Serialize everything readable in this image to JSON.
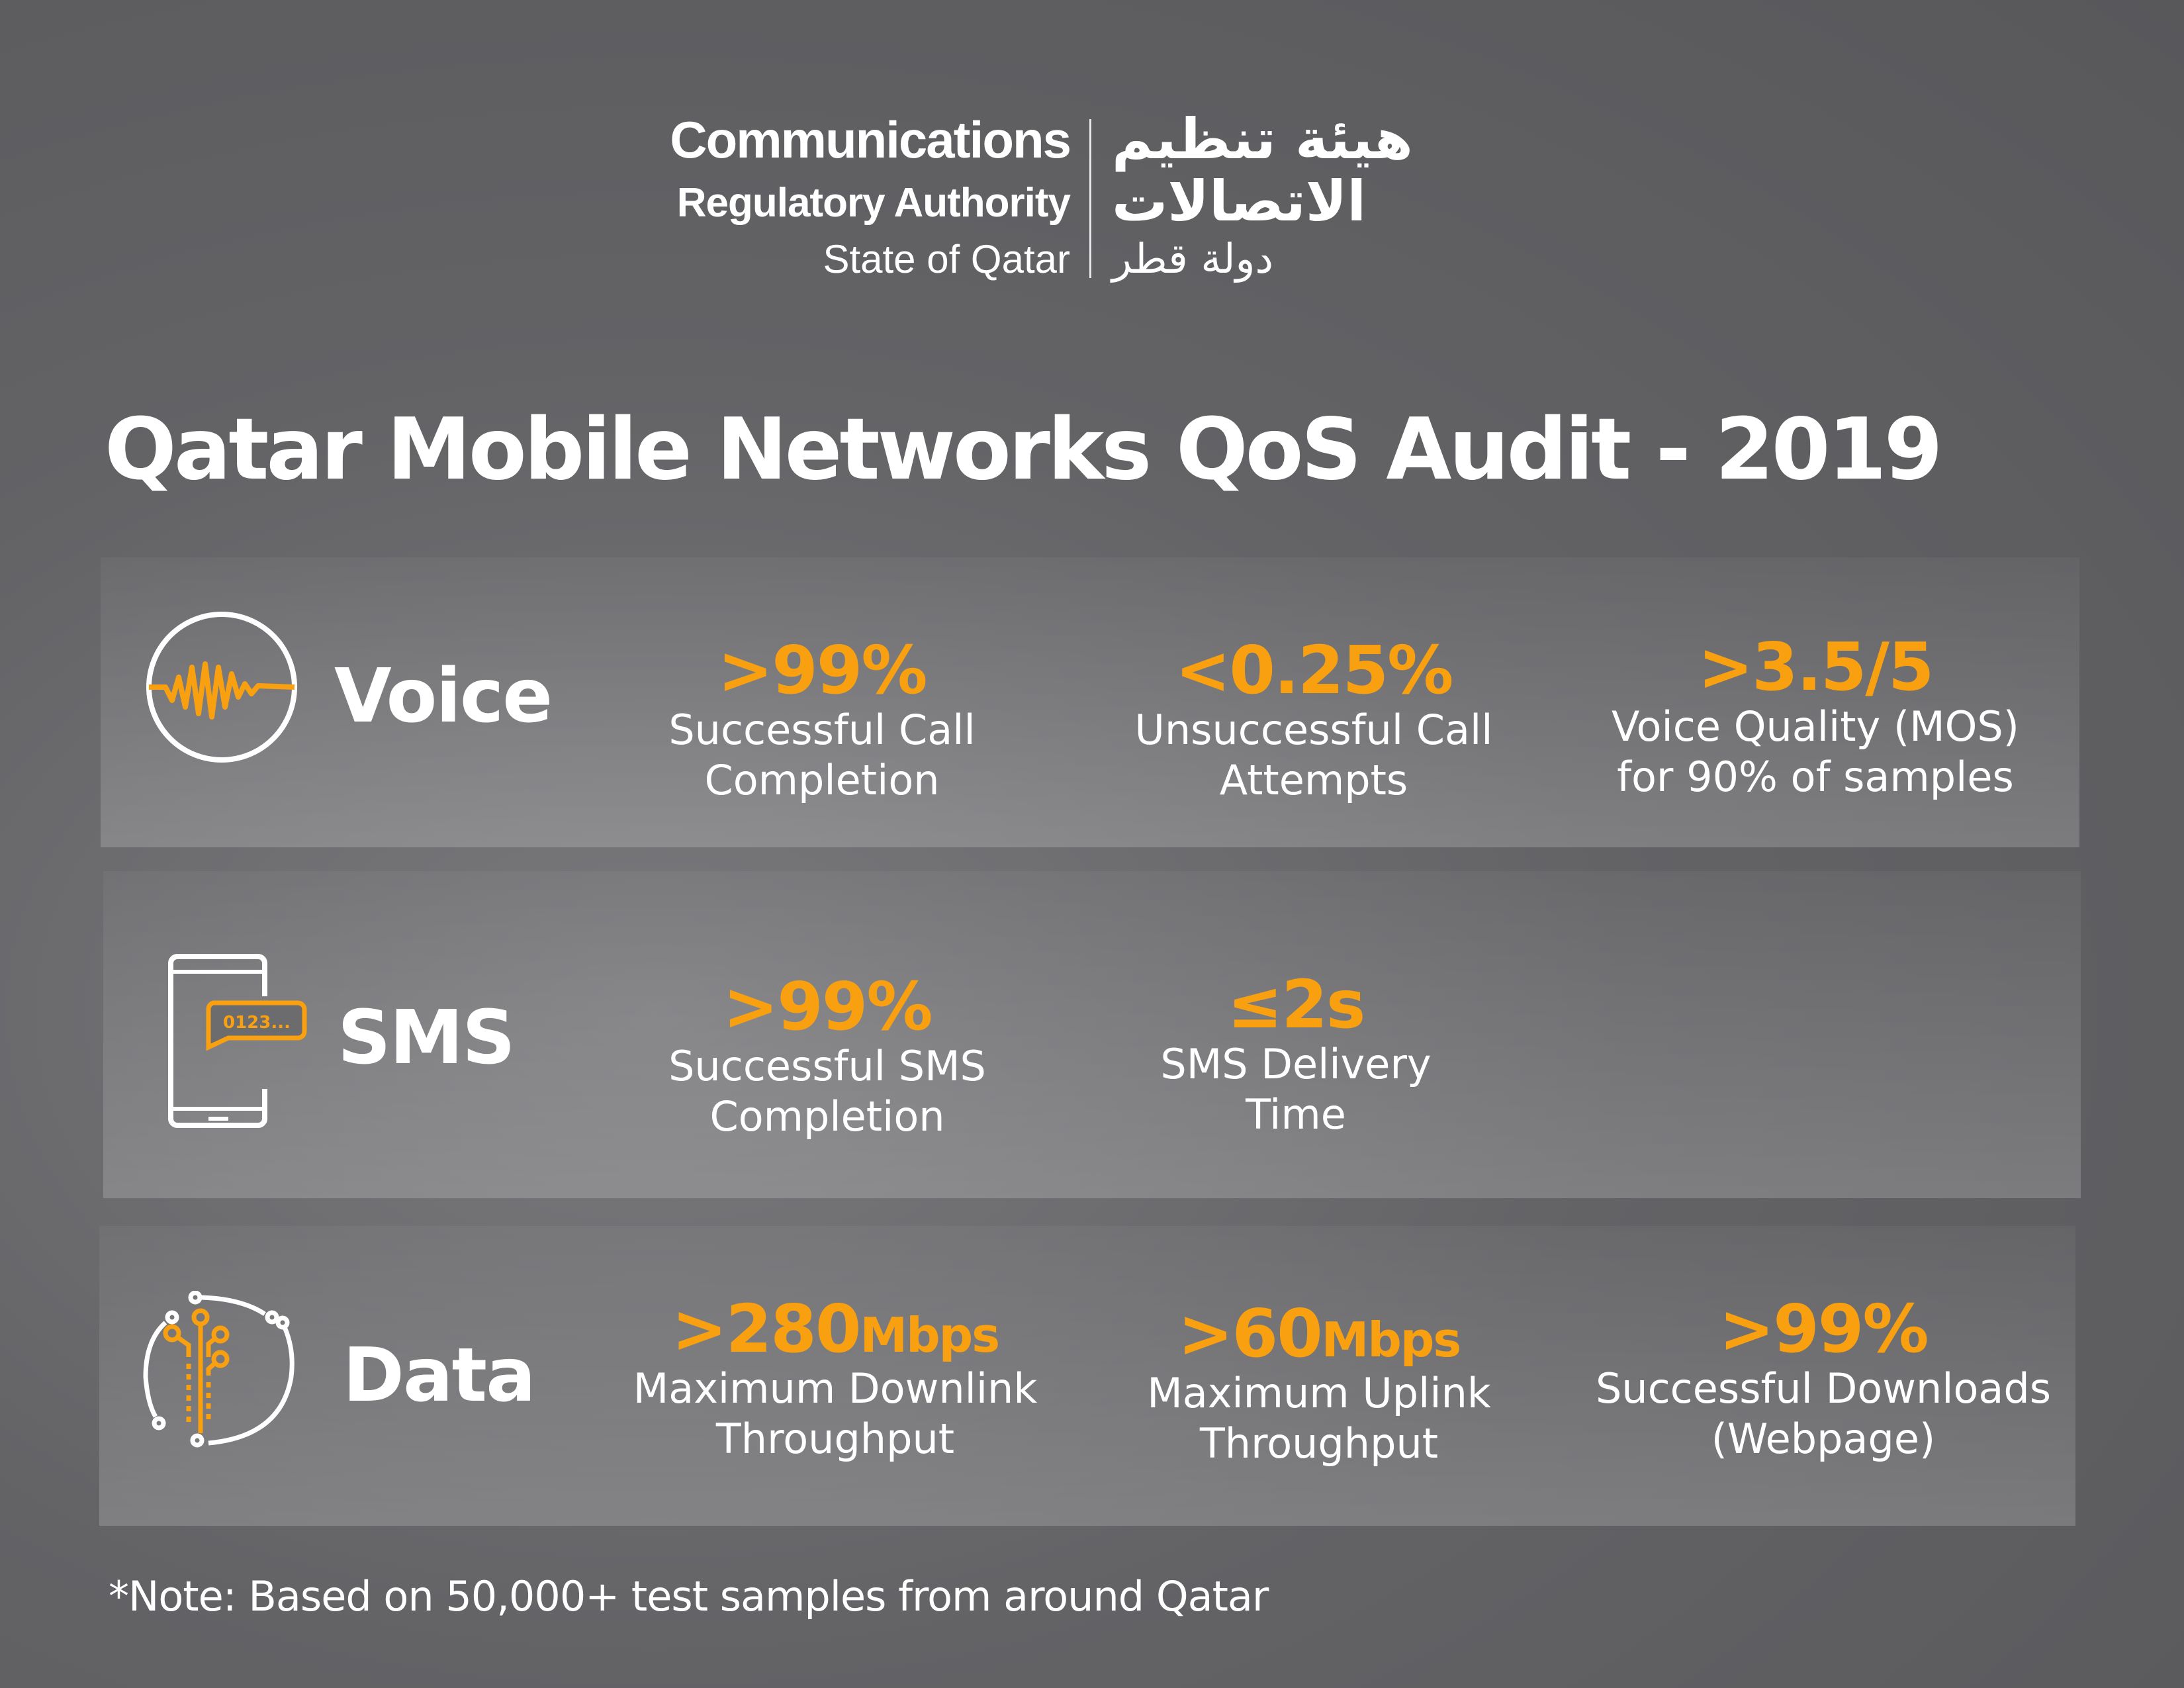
{
  "logo": {
    "en_line1": "Communications",
    "en_line2": "Regulatory Authority",
    "en_line3": "State of Qatar",
    "ar_line1": "هيئة تنظيم",
    "ar_line2": "الاتصالات",
    "ar_line3": "دولة قطر"
  },
  "title": "Qatar Mobile Networks QoS Audit - 2019",
  "accent_color": "#f9a011",
  "sections": [
    {
      "name": "Voice",
      "icon": "voice-wave-icon",
      "stats": [
        {
          "value": ">99%",
          "unit": "",
          "label": "Successful Call\nCompletion"
        },
        {
          "value": "<0.25%",
          "unit": "",
          "label": "Unsuccessful Call\nAttempts"
        },
        {
          "value": ">3.5/5",
          "unit": "",
          "label": "Voice Quality (MOS)\nfor 90% of samples"
        }
      ]
    },
    {
      "name": "SMS",
      "icon": "phone-message-icon",
      "icon_text": "0123...",
      "stats": [
        {
          "value": ">99%",
          "unit": "",
          "label": "Successful SMS\nCompletion"
        },
        {
          "value": "≤2s",
          "unit": "",
          "label": "SMS Delivery\nTime"
        }
      ]
    },
    {
      "name": "Data",
      "icon": "data-circuit-icon",
      "stats": [
        {
          "value": ">280",
          "unit": "Mbps",
          "label": "Maximum Downlink\nThroughput"
        },
        {
          "value": ">60",
          "unit": "Mbps",
          "label": "Maximum Uplink\nThroughput"
        },
        {
          "value": ">99%",
          "unit": "",
          "label": "Successful Downloads\n(Webpage)"
        }
      ]
    }
  ],
  "note": "*Note: Based on 50,000+ test samples from around Qatar"
}
